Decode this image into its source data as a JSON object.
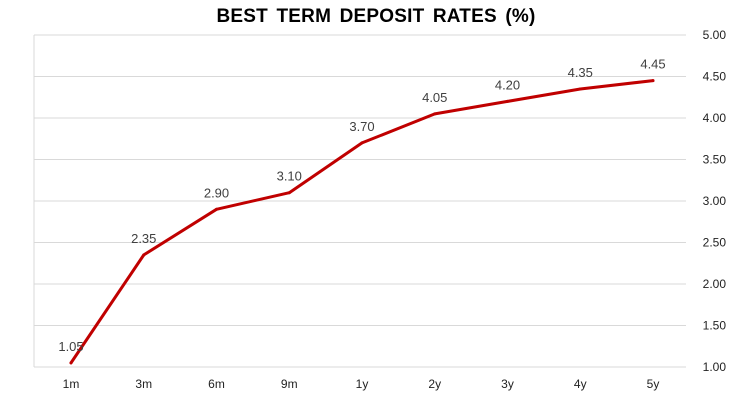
{
  "chart_data": {
    "type": "line",
    "title": "BEST TERM DEPOSIT RATES (%)",
    "xlabel": "",
    "ylabel": "",
    "categories": [
      "1m",
      "3m",
      "6m",
      "9m",
      "1y",
      "2y",
      "3y",
      "4y",
      "5y"
    ],
    "values": [
      1.05,
      2.35,
      2.9,
      3.1,
      3.7,
      4.05,
      4.2,
      4.35,
      4.45
    ],
    "data_labels": [
      "1.05",
      "2.35",
      "2.90",
      "3.10",
      "3.70",
      "4.05",
      "4.20",
      "4.35",
      "4.45"
    ],
    "ylim": [
      1.0,
      5.0
    ],
    "y_ticks": [
      "1.00",
      "1.50",
      "2.00",
      "2.50",
      "3.00",
      "3.50",
      "4.00",
      "4.50",
      "5.00"
    ],
    "y_axis_side": "right",
    "grid": true,
    "legend": "none",
    "line_color": "#C00000",
    "grid_color": "#D9D9D9"
  }
}
